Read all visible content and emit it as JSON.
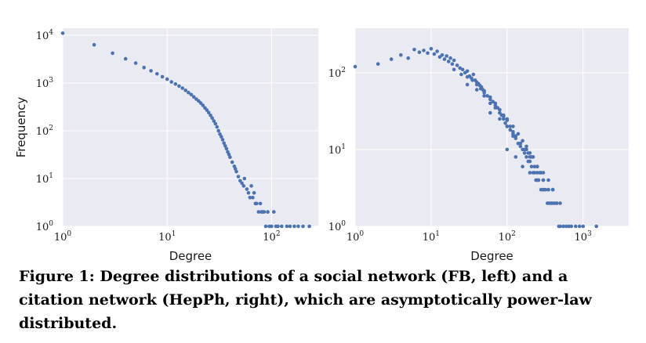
{
  "colors": {
    "panel_bg": "#eaeaf2",
    "grid": "#ffffff",
    "marker": "#4c72b0"
  },
  "caption": "Figure 1: Degree distributions of a social network (FB, left) and a citation network (HepPh, right), which are asymptotically power-law distributed.",
  "chart_data": [
    {
      "type": "scatter",
      "title": "",
      "xlabel": "Degree",
      "ylabel": "Frequency",
      "xscale": "log",
      "yscale": "log",
      "xlim": [
        1,
        280
      ],
      "ylim": [
        1,
        14000
      ],
      "grid": true,
      "x_ticks": [
        {
          "base": "10",
          "exp": "0",
          "value": 1
        },
        {
          "base": "10",
          "exp": "1",
          "value": 10
        },
        {
          "base": "10",
          "exp": "2",
          "value": 100
        }
      ],
      "y_ticks": [
        {
          "base": "10",
          "exp": "0",
          "value": 1
        },
        {
          "base": "10",
          "exp": "1",
          "value": 10
        },
        {
          "base": "10",
          "exp": "2",
          "value": 100
        },
        {
          "base": "10",
          "exp": "3",
          "value": 1000
        },
        {
          "base": "10",
          "exp": "4",
          "value": 10000
        }
      ],
      "series": [
        {
          "x": [
            1,
            2,
            3,
            4,
            5,
            6,
            7,
            8,
            9,
            10,
            11,
            12,
            13,
            14,
            15,
            16,
            17,
            18,
            19,
            20,
            21,
            22,
            23,
            24,
            25,
            26,
            27,
            28,
            29,
            30,
            31,
            32,
            33,
            34,
            35,
            36,
            37,
            38,
            39,
            40,
            42,
            44,
            45,
            46,
            48,
            50,
            52,
            54,
            55,
            58,
            60,
            62,
            64,
            66,
            68,
            70,
            72,
            75,
            78,
            80,
            82,
            85,
            88,
            92,
            95,
            100,
            105,
            110,
            115,
            125,
            140,
            150,
            165,
            180,
            200,
            230
          ],
          "y": [
            11000,
            6300,
            4200,
            3200,
            2600,
            2100,
            1800,
            1550,
            1350,
            1200,
            1050,
            950,
            860,
            780,
            700,
            630,
            570,
            510,
            460,
            420,
            380,
            340,
            300,
            270,
            240,
            210,
            185,
            160,
            140,
            120,
            100,
            85,
            75,
            65,
            55,
            48,
            42,
            36,
            32,
            28,
            22,
            18,
            16,
            14,
            11,
            9,
            8,
            7,
            10,
            6,
            5,
            4,
            7,
            4,
            5,
            3,
            3,
            2,
            3,
            2,
            2,
            2,
            1,
            2,
            1,
            1,
            2,
            1,
            1,
            1,
            1,
            1,
            1,
            1,
            1,
            1
          ]
        }
      ]
    },
    {
      "type": "scatter",
      "title": "",
      "xlabel": "Degree",
      "ylabel": "",
      "xscale": "log",
      "yscale": "log",
      "xlim": [
        1,
        4000
      ],
      "ylim": [
        1,
        380
      ],
      "grid": true,
      "x_ticks": [
        {
          "base": "10",
          "exp": "0",
          "value": 1
        },
        {
          "base": "10",
          "exp": "1",
          "value": 10
        },
        {
          "base": "10",
          "exp": "2",
          "value": 100
        },
        {
          "base": "10",
          "exp": "3",
          "value": 1000
        }
      ],
      "y_ticks": [
        {
          "base": "10",
          "exp": "0",
          "value": 1
        },
        {
          "base": "10",
          "exp": "1",
          "value": 10
        },
        {
          "base": "10",
          "exp": "2",
          "value": 100
        }
      ],
      "series": [
        {
          "x": [
            1,
            2,
            3,
            4,
            5,
            6,
            7,
            8,
            9,
            10,
            11,
            12,
            13,
            14,
            15,
            16,
            17,
            18,
            19,
            20,
            22,
            24,
            26,
            28,
            30,
            32,
            34,
            36,
            38,
            40,
            42,
            44,
            46,
            48,
            50,
            55,
            60,
            65,
            70,
            75,
            80,
            85,
            90,
            95,
            100,
            110,
            120,
            130,
            140,
            150,
            160,
            170,
            180,
            190,
            200,
            210,
            220,
            230,
            240,
            250,
            260,
            280,
            300,
            320,
            340,
            360,
            380,
            400,
            420,
            450,
            480,
            500,
            550,
            600,
            650,
            700,
            800,
            900,
            1000,
            1500,
            20,
            25,
            30,
            35,
            40,
            45,
            50,
            60,
            70,
            80,
            90,
            100,
            110,
            120,
            130,
            150,
            170,
            190,
            210,
            230,
            250,
            270,
            300,
            350,
            400,
            450,
            500,
            30,
            40,
            50,
            60,
            70,
            80,
            90,
            100,
            120,
            140,
            160,
            180,
            200,
            220,
            250,
            280,
            300,
            350,
            400,
            60,
            80,
            100,
            120,
            150,
            180,
            200,
            250,
            300,
            350,
            400,
            100,
            130,
            160,
            200,
            250,
            300
          ],
          "y": [
            120,
            130,
            150,
            170,
            155,
            200,
            185,
            195,
            180,
            205,
            175,
            190,
            160,
            170,
            150,
            165,
            140,
            155,
            130,
            145,
            125,
            115,
            110,
            100,
            105,
            90,
            85,
            95,
            80,
            75,
            72,
            68,
            65,
            60,
            55,
            50,
            45,
            42,
            38,
            35,
            30,
            28,
            25,
            22,
            20,
            18,
            16,
            14,
            12,
            11,
            10,
            9,
            8,
            7,
            7,
            6,
            5,
            5,
            4,
            4,
            4,
            3,
            3,
            3,
            2,
            2,
            2,
            2,
            2,
            2,
            1,
            1,
            1,
            1,
            1,
            1,
            1,
            1,
            1,
            1,
            110,
            95,
            88,
            80,
            70,
            62,
            58,
            48,
            40,
            33,
            27,
            24,
            20,
            17,
            15,
            12,
            10,
            9,
            8,
            6,
            5,
            5,
            4,
            3,
            3,
            2,
            2,
            70,
            60,
            50,
            40,
            35,
            30,
            28,
            25,
            20,
            16,
            13,
            11,
            9,
            8,
            6,
            5,
            4,
            3,
            3,
            30,
            25,
            20,
            15,
            12,
            10,
            8,
            6,
            5,
            4,
            3,
            10,
            8,
            6,
            5,
            4,
            3
          ]
        }
      ]
    }
  ]
}
